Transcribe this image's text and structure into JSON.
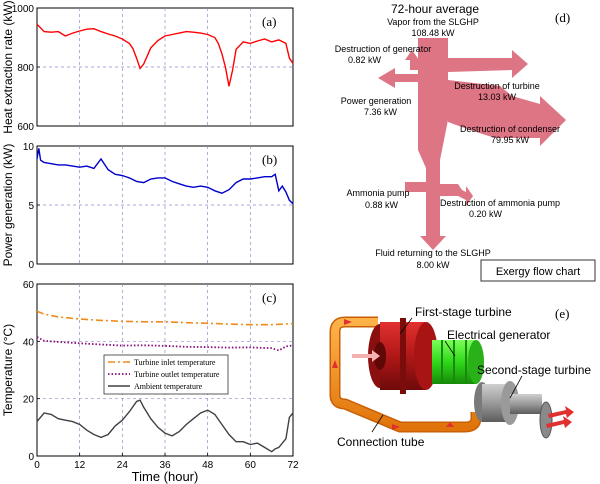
{
  "chart_data": [
    {
      "panel": "(a)",
      "type": "line",
      "ylabel": "Heat extraction rate (kW)",
      "xlim": [
        0,
        72
      ],
      "ylim": [
        600,
        1000
      ],
      "yticks": [
        600,
        800,
        1000
      ],
      "grid": true,
      "color": "#ff0000",
      "x": [
        0,
        2,
        4,
        6,
        8,
        10,
        12,
        14,
        16,
        18,
        20,
        22,
        24,
        26,
        27,
        28,
        29,
        30,
        32,
        34,
        36,
        38,
        40,
        42,
        44,
        46,
        48,
        50,
        51,
        52,
        53,
        54,
        55,
        56,
        58,
        60,
        62,
        64,
        66,
        68,
        70,
        71,
        72
      ],
      "y": [
        945,
        920,
        918,
        920,
        905,
        915,
        922,
        928,
        930,
        920,
        912,
        905,
        895,
        880,
        862,
        830,
        795,
        810,
        865,
        890,
        905,
        910,
        915,
        920,
        918,
        915,
        910,
        900,
        880,
        845,
        800,
        735,
        790,
        860,
        885,
        880,
        888,
        895,
        885,
        892,
        880,
        830,
        812
      ]
    },
    {
      "panel": "(b)",
      "type": "line",
      "ylabel": "Power generation (kW)",
      "xlim": [
        0,
        72
      ],
      "ylim": [
        0,
        10
      ],
      "yticks": [
        0,
        5,
        10
      ],
      "grid": true,
      "color": "#0000cc",
      "x": [
        0,
        0.5,
        1,
        2,
        4,
        6,
        8,
        10,
        12,
        14,
        16,
        18,
        20,
        22,
        24,
        26,
        28,
        30,
        32,
        34,
        36,
        38,
        40,
        42,
        44,
        46,
        48,
        50,
        52,
        54,
        56,
        58,
        60,
        62,
        64,
        66,
        67,
        68,
        69,
        70,
        71,
        72
      ],
      "y": [
        8.9,
        9.8,
        8.8,
        8.6,
        8.5,
        8.4,
        8.4,
        8.3,
        8.2,
        8.3,
        8.1,
        8.9,
        8.0,
        7.6,
        7.5,
        7.3,
        7.0,
        6.9,
        7.2,
        7.3,
        7.3,
        7.0,
        6.8,
        6.6,
        6.5,
        6.6,
        6.5,
        6.2,
        6.0,
        6.3,
        6.9,
        7.2,
        7.2,
        7.3,
        7.4,
        7.4,
        7.6,
        6.2,
        6.6,
        6.1,
        5.4,
        5.1
      ]
    },
    {
      "panel": "(c)",
      "type": "line",
      "ylabel": "Temperature (°C)",
      "xlabel": "Time  (hour)",
      "xlim": [
        0,
        72
      ],
      "ylim": [
        0,
        60
      ],
      "yticks": [
        0,
        20,
        40,
        60
      ],
      "xticks": [
        0,
        12,
        24,
        36,
        48,
        60,
        72
      ],
      "grid": true,
      "legend_position": "lower-left",
      "series": [
        {
          "name": "Turbine inlet temperature",
          "color": "#f08a1a",
          "dash": "dashdot",
          "x": [
            0,
            2,
            6,
            12,
            18,
            24,
            30,
            36,
            42,
            48,
            54,
            60,
            66,
            72
          ],
          "y": [
            50.5,
            49.5,
            48.5,
            47.8,
            47.3,
            47.0,
            46.8,
            46.8,
            46.5,
            46.3,
            46.0,
            45.8,
            45.8,
            46.2
          ]
        },
        {
          "name": "Turbine outlet temperature",
          "color": "#8b0a7a",
          "dash": "dotted",
          "x": [
            0,
            2,
            6,
            12,
            18,
            24,
            30,
            36,
            42,
            48,
            54,
            60,
            66,
            68,
            70,
            72
          ],
          "y": [
            41.5,
            40.2,
            39.8,
            39.3,
            38.9,
            38.5,
            38.6,
            38.4,
            38.1,
            38.0,
            37.8,
            37.9,
            37.6,
            36.8,
            38.2,
            38.6
          ]
        },
        {
          "name": "Ambient temperature",
          "color": "#404040",
          "dash": "solid",
          "x": [
            0,
            2,
            4,
            6,
            8,
            10,
            12,
            14,
            16,
            18,
            20,
            22,
            24,
            26,
            28,
            29,
            30,
            32,
            34,
            36,
            38,
            40,
            42,
            44,
            46,
            48,
            50,
            52,
            54,
            56,
            58,
            60,
            62,
            64,
            66,
            67,
            68,
            70,
            71,
            72
          ],
          "y": [
            12,
            15,
            14.5,
            13,
            12.5,
            12,
            11,
            9,
            7.5,
            6.5,
            7.5,
            10.5,
            12.5,
            15.5,
            19,
            19.5,
            17,
            13,
            10,
            8,
            7,
            8.5,
            11,
            13,
            15,
            16,
            14.5,
            11,
            7.5,
            5,
            5,
            4,
            4.5,
            3,
            1.5,
            2.5,
            3,
            6,
            13.5,
            15
          ]
        }
      ]
    },
    {
      "panel": "(d)",
      "type": "sankey",
      "title": "72-hour average",
      "caption": "Exergy flow chart",
      "flows": [
        {
          "label": "Vapor from the SLGHP",
          "value": "108.48 kW"
        },
        {
          "label": "Destruction of generator",
          "value": "0.82 kW"
        },
        {
          "label": "Power generation",
          "value": "7.36 kW"
        },
        {
          "label": "Destruction of turbine",
          "value": "13.03 kW"
        },
        {
          "label": "Destruction of condenser",
          "value": "79.95 kW"
        },
        {
          "label": "Ammonia pump",
          "value": "0.88 kW"
        },
        {
          "label": "Destruction of ammonia pump",
          "value": "0.20 kW"
        },
        {
          "label": "Fluid returning to the SLGHP",
          "value": "8.00 kW"
        }
      ],
      "color": "#dd7585"
    }
  ],
  "panel_e": {
    "tag": "(e)",
    "labels": {
      "first_stage": "First-stage turbine",
      "generator": "Electrical generator",
      "second_stage": "Second-stage turbine",
      "tube": "Connection tube"
    }
  }
}
